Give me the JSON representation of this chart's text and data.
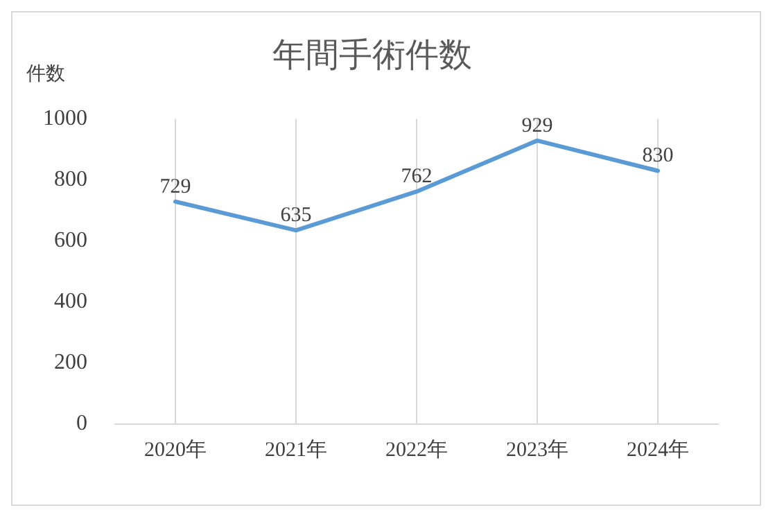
{
  "chart_data": {
    "type": "line",
    "title": "年間手術件数",
    "ylabel": "件数",
    "categories": [
      "2020年",
      "2021年",
      "2022年",
      "2023年",
      "2024年"
    ],
    "series": [
      {
        "color": "#5b9bd5",
        "values": [
          729,
          635,
          762,
          929,
          830
        ]
      }
    ],
    "ylim": [
      0,
      1000
    ],
    "yticks": [
      0,
      200,
      400,
      600,
      800,
      1000
    ],
    "grid": "x",
    "legend": false,
    "data_labels": true,
    "marker": "none",
    "line_style": "solid"
  }
}
